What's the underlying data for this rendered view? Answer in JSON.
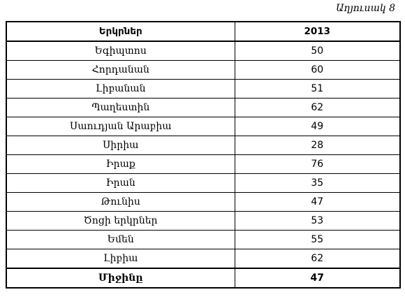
{
  "caption": "Աղյուսակ 8",
  "table": {
    "headers": [
      "Երկրներ",
      "2013"
    ],
    "rows": [
      {
        "country": "Եգիպտոս",
        "value": "50"
      },
      {
        "country": "Հորդանան",
        "value": "60"
      },
      {
        "country": "Լիբանան",
        "value": "51"
      },
      {
        "country": "Պաղեստին",
        "value": "62"
      },
      {
        "country": "Սաուդյան Արաբիա",
        "value": "49"
      },
      {
        "country": "Սիրիա",
        "value": "28"
      },
      {
        "country": "Իրաք",
        "value": "76"
      },
      {
        "country": "Իրան",
        "value": "35"
      },
      {
        "country": "Թունիս",
        "value": "47"
      },
      {
        "country": "Ծոցի երկրներ",
        "value": "53"
      },
      {
        "country": "Եմեն",
        "value": "55"
      },
      {
        "country": "Լիբիա",
        "value": "62"
      }
    ],
    "total": {
      "label": "Միջինը",
      "value": "47"
    }
  }
}
